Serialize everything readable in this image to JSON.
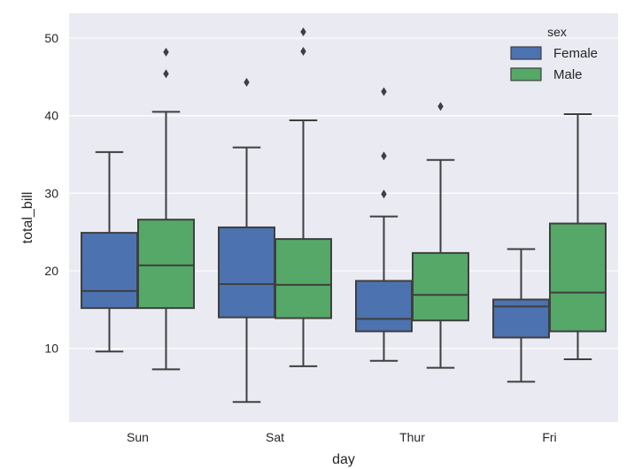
{
  "chart_data": {
    "type": "box",
    "xlabel": "day",
    "ylabel": "total_bill",
    "categories": [
      "Sun",
      "Sat",
      "Thur",
      "Fri"
    ],
    "yticks": [
      10,
      20,
      30,
      40,
      50
    ],
    "ylim": [
      0.5,
      53.2
    ],
    "grid": true,
    "legend": {
      "title": "sex",
      "placement": "top-right"
    },
    "series": [
      {
        "name": "Female",
        "color": "#4c72b0",
        "boxes": [
          {
            "whisker_low": 9.6,
            "q1": 15.2,
            "median": 17.4,
            "q3": 24.9,
            "whisker_high": 35.3,
            "outliers": []
          },
          {
            "whisker_low": 3.1,
            "q1": 14.0,
            "median": 18.3,
            "q3": 25.6,
            "whisker_high": 35.9,
            "outliers": [
              44.3
            ]
          },
          {
            "whisker_low": 8.4,
            "q1": 12.2,
            "median": 13.8,
            "q3": 18.7,
            "whisker_high": 27.0,
            "outliers": [
              29.9,
              34.8,
              43.1
            ]
          },
          {
            "whisker_low": 5.7,
            "q1": 11.4,
            "median": 15.4,
            "q3": 16.3,
            "whisker_high": 22.8,
            "outliers": []
          }
        ]
      },
      {
        "name": "Male",
        "color": "#55a868",
        "boxes": [
          {
            "whisker_low": 7.3,
            "q1": 15.2,
            "median": 20.7,
            "q3": 26.6,
            "whisker_high": 40.5,
            "outliers": [
              45.4,
              48.2
            ]
          },
          {
            "whisker_low": 7.7,
            "q1": 13.9,
            "median": 18.2,
            "q3": 24.1,
            "whisker_high": 39.4,
            "outliers": [
              48.3,
              50.8
            ]
          },
          {
            "whisker_low": 7.5,
            "q1": 13.6,
            "median": 16.9,
            "q3": 22.3,
            "whisker_high": 34.3,
            "outliers": [
              41.2
            ]
          },
          {
            "whisker_low": 8.6,
            "q1": 12.2,
            "median": 17.2,
            "q3": 26.1,
            "whisker_high": 40.2,
            "outliers": []
          }
        ]
      }
    ]
  }
}
